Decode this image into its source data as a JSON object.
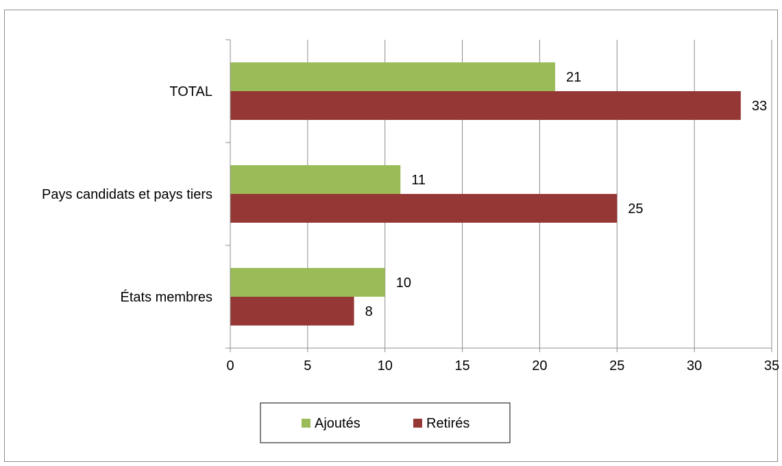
{
  "chart_data": {
    "type": "bar",
    "orientation": "horizontal",
    "categories": [
      "TOTAL",
      "Pays candidats et pays tiers",
      "États membres"
    ],
    "series": [
      {
        "name": "Ajoutés",
        "values": [
          21,
          11,
          10
        ],
        "color": "#9bbb59"
      },
      {
        "name": "Retirés",
        "values": [
          33,
          25,
          8
        ],
        "color": "#953735"
      }
    ],
    "xlim": [
      0,
      35
    ],
    "xticks": [
      0,
      5,
      10,
      15,
      20,
      25,
      30,
      35
    ],
    "grid": "vertical",
    "legend_position": "bottom",
    "data_labels": true
  },
  "colors": {
    "gridline": "#8c8c8c",
    "axis": "#8c8c8c",
    "frame": "#8c8c8c"
  }
}
